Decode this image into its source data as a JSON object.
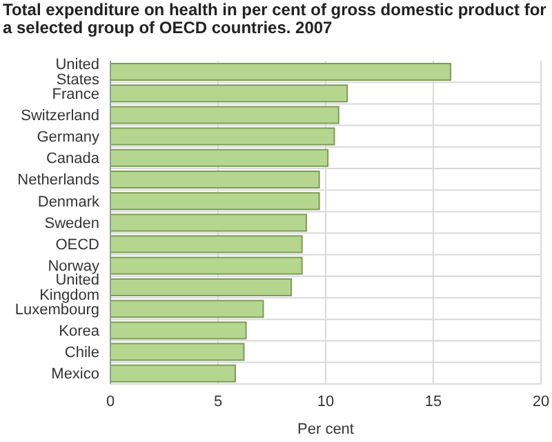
{
  "chart_data": {
    "type": "bar",
    "orientation": "horizontal",
    "title": "Total expenditure on health in per cent of gross domestic product for a selected group of OECD countries. 2007",
    "xlabel": "Per cent",
    "categories": [
      "United States",
      "France",
      "Switzerland",
      "Germany",
      "Canada",
      "Netherlands",
      "Denmark",
      "Sweden",
      "OECD",
      "Norway",
      "United Kingdom",
      "Luxembourg",
      "Korea",
      "Chile",
      "Mexico"
    ],
    "values": [
      15.8,
      11.0,
      10.6,
      10.4,
      10.1,
      9.7,
      9.7,
      9.1,
      8.9,
      8.9,
      8.4,
      7.1,
      6.3,
      6.2,
      5.8
    ],
    "color": "#b5d68e",
    "xlim": [
      0,
      20
    ],
    "xticks": [
      0,
      5,
      10,
      15,
      20
    ],
    "grid": true,
    "legend": false
  }
}
